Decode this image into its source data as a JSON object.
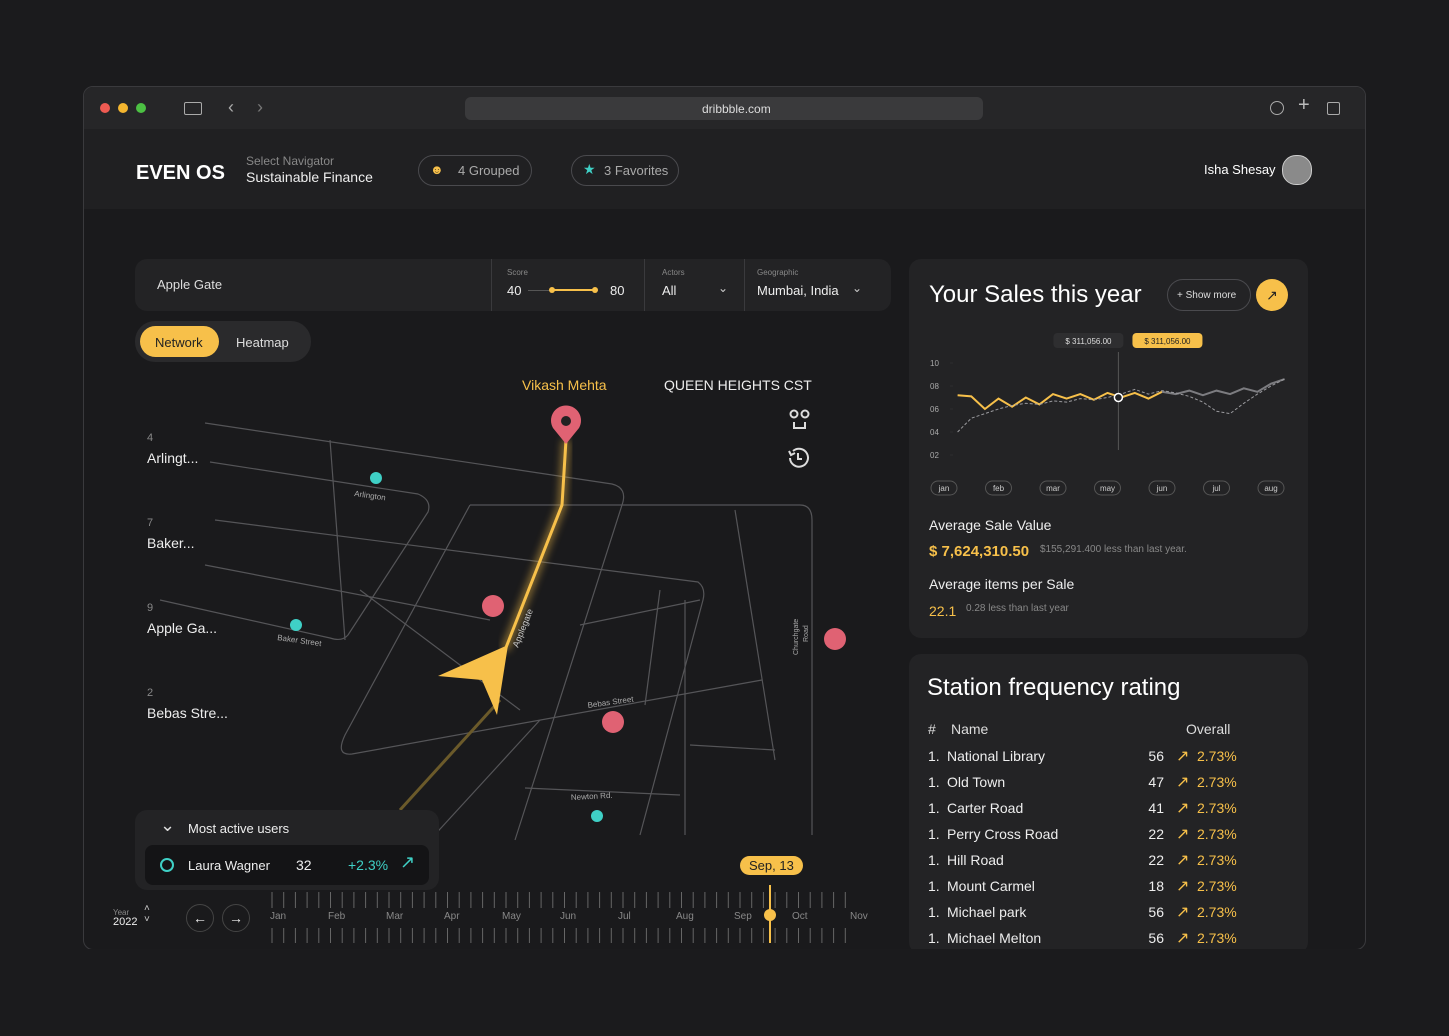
{
  "browser": {
    "url": "dribbble.com"
  },
  "header": {
    "brand": "EVEN OS",
    "navigator_label": "Select Navigator",
    "navigator_value": "Sustainable Finance",
    "grouped": "4 Grouped",
    "favorites": "3 Favorites",
    "user": "Isha Shesay"
  },
  "filters": {
    "search": "Apple Gate",
    "score_label": "Score",
    "score_min": 40,
    "score_max": 80,
    "actors_label": "Actors",
    "actors_value": "All",
    "geo_label": "Geographic",
    "geo_value": "Mumbai, India"
  },
  "tabs": [
    "Network",
    "Heatmap"
  ],
  "map": {
    "person": "Vikash Mehta",
    "place": "QUEEN HEIGHTS CST",
    "streets": [
      "Arlington",
      "Baker Street",
      "Applegate",
      "Bebas Street",
      "Newton Rd.",
      "Churchgate",
      "Road"
    ],
    "side_list": [
      {
        "count": 4,
        "label": "Arlingt..."
      },
      {
        "count": 7,
        "label": "Baker..."
      },
      {
        "count": 9,
        "label": "Apple Ga..."
      },
      {
        "count": 2,
        "label": "Bebas Stre..."
      }
    ]
  },
  "active_users": {
    "title": "Most active users",
    "name": "Laura Wagner",
    "value": 32,
    "change": "+2.3%"
  },
  "timeline": {
    "year_label": "Year",
    "year": 2022,
    "months": [
      "Jan",
      "Feb",
      "Mar",
      "Apr",
      "May",
      "Jun",
      "Jul",
      "Aug",
      "Sep",
      "Oct",
      "Nov"
    ],
    "marker": "Sep, 13"
  },
  "sales": {
    "title": "Your Sales this year",
    "show_more": "+ Show more",
    "avg_sale_label": "Average Sale Value",
    "avg_sale_value": "$ 7,624,310.50",
    "avg_sale_note": "$155,291.400 less than last year.",
    "avg_items_label": "Average items per Sale",
    "avg_items_value": 22.1,
    "avg_items_note": "0.28 less than last year"
  },
  "chart_data": {
    "type": "line",
    "annotations": [
      "$ 311,056.00",
      "$ 311,056.00"
    ],
    "x": [
      0.25,
      0.5,
      0.75,
      1,
      1.25,
      1.5,
      1.75,
      2,
      2.25,
      2.5,
      2.75,
      3,
      3.25,
      3.5,
      3.75,
      4,
      4.25,
      4.5,
      4.75,
      5,
      5.25,
      5.5,
      5.75,
      6,
      6.25
    ],
    "xlim": [
      0,
      6
    ],
    "xticks": [
      {
        "value": 0,
        "label": "jan"
      },
      {
        "value": 1,
        "label": "feb"
      },
      {
        "value": 2,
        "label": "mar"
      },
      {
        "value": 3,
        "label": "may"
      },
      {
        "value": 4,
        "label": "jun"
      },
      {
        "value": 5,
        "label": "jul"
      },
      {
        "value": 6,
        "label": "aug"
      }
    ],
    "ylim": [
      0,
      11
    ],
    "yticks": [
      10,
      {
        "value": 8,
        "label": "08"
      },
      {
        "value": 6,
        "label": "06"
      },
      {
        "value": 4,
        "label": "04"
      },
      {
        "value": 2,
        "label": "02"
      }
    ],
    "highlight_x": 3.2,
    "series": [
      {
        "color": "#f7c04a",
        "values": [
          7.2,
          7.1,
          6.0,
          6.9,
          6.2,
          7.0,
          6.4,
          7.3,
          6.9,
          7.3,
          6.8,
          7.4,
          7.0,
          7.4,
          6.9,
          7.5,
          null,
          null,
          null,
          null,
          null,
          null,
          null,
          null,
          null
        ]
      },
      {
        "color": "#7c7c80",
        "values": [
          null,
          null,
          null,
          null,
          null,
          null,
          null,
          null,
          null,
          null,
          null,
          null,
          null,
          null,
          null,
          7.5,
          7.3,
          7.6,
          7.2,
          7.6,
          7.3,
          7.8,
          7.5,
          8.2,
          8.6
        ]
      },
      {
        "color": "#9a9a9e",
        "dashed": true,
        "values": [
          4.0,
          5.2,
          5.6,
          6.0,
          6.3,
          6.5,
          6.4,
          6.7,
          6.6,
          6.9,
          6.8,
          7.0,
          7.3,
          7.7,
          7.3,
          7.6,
          7.4,
          7.1,
          6.6,
          5.8,
          5.6,
          6.5,
          7.3,
          8.0,
          8.6
        ]
      }
    ]
  },
  "stations": {
    "title": "Station frequency rating",
    "headers": [
      "#",
      "Name",
      "Overall"
    ],
    "rows": [
      {
        "rank": "1.",
        "name": "National Library",
        "value": 56,
        "change": "2.73%"
      },
      {
        "rank": "1.",
        "name": "Old Town",
        "value": 47,
        "change": "2.73%"
      },
      {
        "rank": "1.",
        "name": "Carter Road",
        "value": 41,
        "change": "2.73%"
      },
      {
        "rank": "1.",
        "name": "Perry Cross Road",
        "value": 22,
        "change": "2.73%"
      },
      {
        "rank": "1.",
        "name": "Hill Road",
        "value": 22,
        "change": "2.73%"
      },
      {
        "rank": "1.",
        "name": "Mount Carmel",
        "value": 18,
        "change": "2.73%"
      },
      {
        "rank": "1.",
        "name": "Michael park",
        "value": 56,
        "change": "2.73%"
      },
      {
        "rank": "1.",
        "name": "Michael Melton",
        "value": 56,
        "change": "2.73%"
      }
    ]
  }
}
